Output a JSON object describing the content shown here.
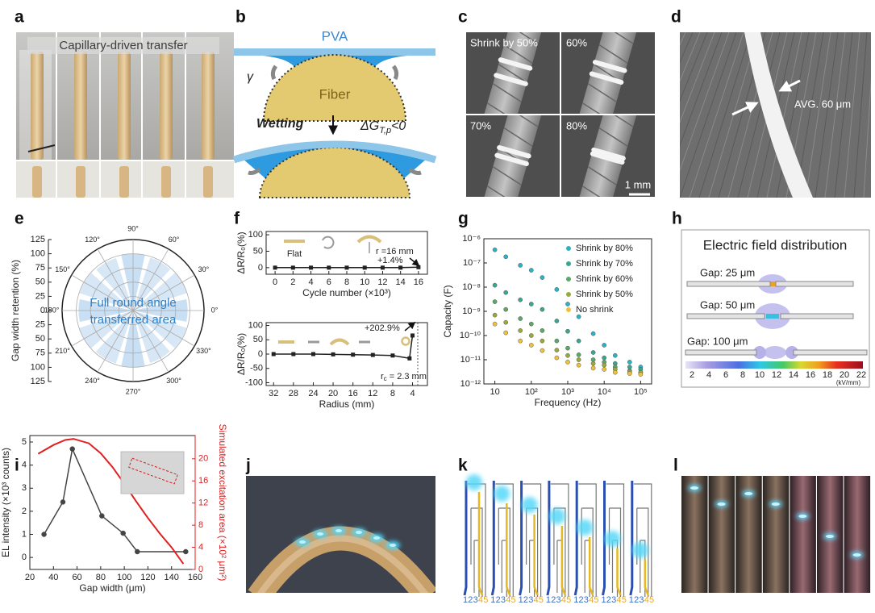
{
  "panel_labels": [
    "a",
    "b",
    "c",
    "d",
    "e",
    "f",
    "g",
    "h",
    "i",
    "j",
    "k",
    "l"
  ],
  "panels": {
    "a": {
      "title": "Capillary-driven transfer"
    },
    "b": {
      "film": "PVA",
      "tension": "γ",
      "fiber": "Fiber",
      "process": "Wetting",
      "energy": {
        "symbol": "ΔG",
        "subscript": "T,p",
        "relation": "<0"
      }
    },
    "c": {
      "labels": [
        "Shrink by 50%",
        "60%",
        "70%",
        "80%"
      ],
      "scale_bar": "1 mm"
    },
    "d": {
      "label": "AVG. 60 μm"
    },
    "h": {
      "title": "Electric field distribution",
      "gaps": [
        "Gap: 25 μm",
        "Gap: 50 μm",
        "Gap: 100 μm"
      ],
      "colorbar_ticks": [
        2,
        4,
        6,
        8,
        10,
        12,
        14,
        16,
        18,
        20,
        22
      ],
      "colorbar_unit": "(kV/mm)"
    },
    "k": {
      "channels": [
        "1",
        "2",
        "3",
        "4",
        "5"
      ]
    }
  },
  "chart_data": [
    {
      "type": "polar",
      "ylabel": "Gap width retention (%)",
      "annotation": [
        "Full round angle",
        "transferred area"
      ],
      "annotation_color": "#2f80c8",
      "x": [
        0,
        30,
        60,
        90,
        120,
        150,
        180,
        210,
        240,
        270,
        300,
        330
      ],
      "values": [
        96,
        100,
        98,
        100,
        97,
        99,
        96,
        100,
        98,
        100,
        97,
        99
      ],
      "color": "#c6ddf2",
      "rlim": [
        0,
        125
      ],
      "rticks": [
        0,
        25,
        50,
        75,
        100,
        125
      ],
      "angle_ticks": [
        {
          "value": 0,
          "label": "0°"
        },
        {
          "value": 30,
          "label": "30°"
        },
        {
          "value": 60,
          "label": "60°"
        },
        {
          "value": 90,
          "label": "90°"
        },
        {
          "value": 120,
          "label": "120°"
        },
        {
          "value": 150,
          "label": "150°"
        },
        {
          "value": 180,
          "label": "180°"
        },
        {
          "value": 210,
          "label": "210°"
        },
        {
          "value": 240,
          "label": "240°"
        },
        {
          "value": 270,
          "label": "270°"
        },
        {
          "value": 300,
          "label": "300°"
        },
        {
          "value": 330,
          "label": "330°"
        }
      ]
    },
    {
      "type": "line",
      "xlabel": "Cycle number (×10³)",
      "ylabel": "ΔR/R₀(%)",
      "x": [
        0,
        2,
        4,
        6,
        8,
        10,
        12,
        14,
        16
      ],
      "values": [
        0,
        0,
        0,
        0,
        0,
        0,
        0,
        0,
        1.4
      ],
      "color": "#222222",
      "marker": "square",
      "xlim": [
        -1,
        17
      ],
      "xticks": [
        0,
        2,
        4,
        6,
        8,
        10,
        12,
        14,
        16
      ],
      "ylim": [
        -20,
        110
      ],
      "yticks": [
        0,
        50,
        100
      ],
      "annotations": {
        "flat": "Flat",
        "radius": "r =16 mm",
        "change": "+1.4%"
      }
    },
    {
      "type": "line",
      "xlabel": "Radius (mm)",
      "ylabel": "ΔR/R₀(%)",
      "x": [
        32,
        28,
        24,
        20,
        16,
        12,
        8,
        4.6,
        4
      ],
      "values": [
        0,
        0,
        0,
        -1,
        -2,
        -3,
        -5,
        -15,
        65
      ],
      "color": "#222222",
      "marker": "square",
      "xlim": [
        33.5,
        1
      ],
      "xticks": [
        32,
        28,
        24,
        20,
        16,
        12,
        8,
        4
      ],
      "ylim": [
        -110,
        110
      ],
      "yticks": [
        -100,
        -50,
        0,
        50,
        100
      ],
      "annotations": {
        "change": "+202.9%",
        "radius": {
          "symbol": "r",
          "subscript": "c",
          "value": " = 2.3 mm"
        }
      }
    },
    {
      "type": "scatter",
      "xlabel": "Frequency (Hz)",
      "ylabel": "Capacity (F)",
      "xscale": "log",
      "yscale": "log",
      "xlim": [
        5,
        200000
      ],
      "xticks": [
        10,
        {
          "value": 100,
          "label": "10²"
        },
        {
          "value": 1000,
          "label": "10³"
        },
        {
          "value": 10000,
          "label": "10⁴"
        },
        {
          "value": 100000,
          "label": "10⁵"
        }
      ],
      "ylim": [
        1e-12,
        1e-06
      ],
      "yticks": [
        {
          "value": 1e-12,
          "label": "10⁻¹²"
        },
        {
          "value": 1e-11,
          "label": "10⁻¹¹"
        },
        {
          "value": 1e-10,
          "label": "10⁻¹⁰"
        },
        {
          "value": 1e-09,
          "label": "10⁻⁹"
        },
        {
          "value": 1e-08,
          "label": "10⁻⁸"
        },
        {
          "value": 1e-07,
          "label": "10⁻⁷"
        },
        {
          "value": 1e-06,
          "label": "10⁻⁶"
        }
      ],
      "legend": "top-right",
      "x": [
        10,
        20,
        50,
        100,
        200,
        500,
        1000,
        2000,
        5000,
        10000,
        20000,
        50000,
        100000
      ],
      "series": [
        {
          "name": "Shrink by 80%",
          "color": "#29b3c4",
          "values": [
            3.5e-07,
            1.8e-07,
            8e-08,
            5e-08,
            2.5e-08,
            8e-09,
            2e-09,
            6e-10,
            1.2e-10,
            4e-11,
            1.5e-11,
            8e-12,
            5e-12
          ]
        },
        {
          "name": "Shrink by 70%",
          "color": "#3aa591",
          "values": [
            1.2e-08,
            6e-09,
            3e-09,
            2e-09,
            1.2e-09,
            4e-10,
            1.5e-10,
            6e-11,
            2e-11,
            1.2e-11,
            7e-12,
            5e-12,
            4e-12
          ]
        },
        {
          "name": "Shrink by 60%",
          "color": "#5aa86a",
          "values": [
            2.5e-09,
            1.2e-09,
            5e-10,
            3e-10,
            1.6e-10,
            6e-11,
            3e-11,
            1.6e-11,
            1e-11,
            8e-12,
            5e-12,
            3.5e-12,
            3e-12
          ]
        },
        {
          "name": "Shrink by 50%",
          "color": "#98aa3c",
          "values": [
            7e-10,
            3.5e-10,
            1.6e-10,
            1e-10,
            6e-11,
            2.5e-11,
            1.5e-11,
            1e-11,
            7e-12,
            6e-12,
            4e-12,
            3.2e-12,
            3e-12
          ]
        },
        {
          "name": "No shrink",
          "color": "#f0c03c",
          "values": [
            3e-10,
            1.3e-10,
            6e-11,
            4e-11,
            2.4e-11,
            1.2e-11,
            8e-12,
            6e-12,
            4.5e-12,
            4e-12,
            3e-12,
            2.7e-12,
            2.5e-12
          ]
        }
      ]
    },
    {
      "type": "line",
      "xlabel": "Gap width (μm)",
      "ylabel": "EL intensity (×10³ counts)",
      "y2label": "Simulated excitation area (×10² μm²)",
      "xlim": [
        20,
        160
      ],
      "xticks": [
        20,
        40,
        60,
        80,
        100,
        120,
        140,
        160
      ],
      "ylim": [
        -0.52,
        5.28
      ],
      "yticks": [
        0,
        1,
        2,
        3,
        4,
        5
      ],
      "y2lim": [
        0,
        24.2
      ],
      "y2ticks": [
        0,
        4,
        8,
        12,
        16,
        20
      ],
      "series": [
        {
          "color": "#444444",
          "marker": "circle",
          "x": [
            32,
            48,
            56,
            81,
            99,
            111,
            152
          ],
          "values": [
            1.0,
            2.4,
            4.7,
            1.8,
            1.05,
            0.25,
            0.25
          ]
        },
        {
          "color": "#e02020",
          "marker": "none",
          "axis": "y2",
          "x": [
            27,
            40,
            50,
            57,
            70,
            80,
            90,
            100,
            110,
            120,
            130,
            140,
            150
          ],
          "values": [
            20.9,
            22.5,
            23.4,
            23.6,
            22.8,
            21,
            18.5,
            15.5,
            12.3,
            9.3,
            6.5,
            4,
            1
          ]
        }
      ]
    }
  ]
}
